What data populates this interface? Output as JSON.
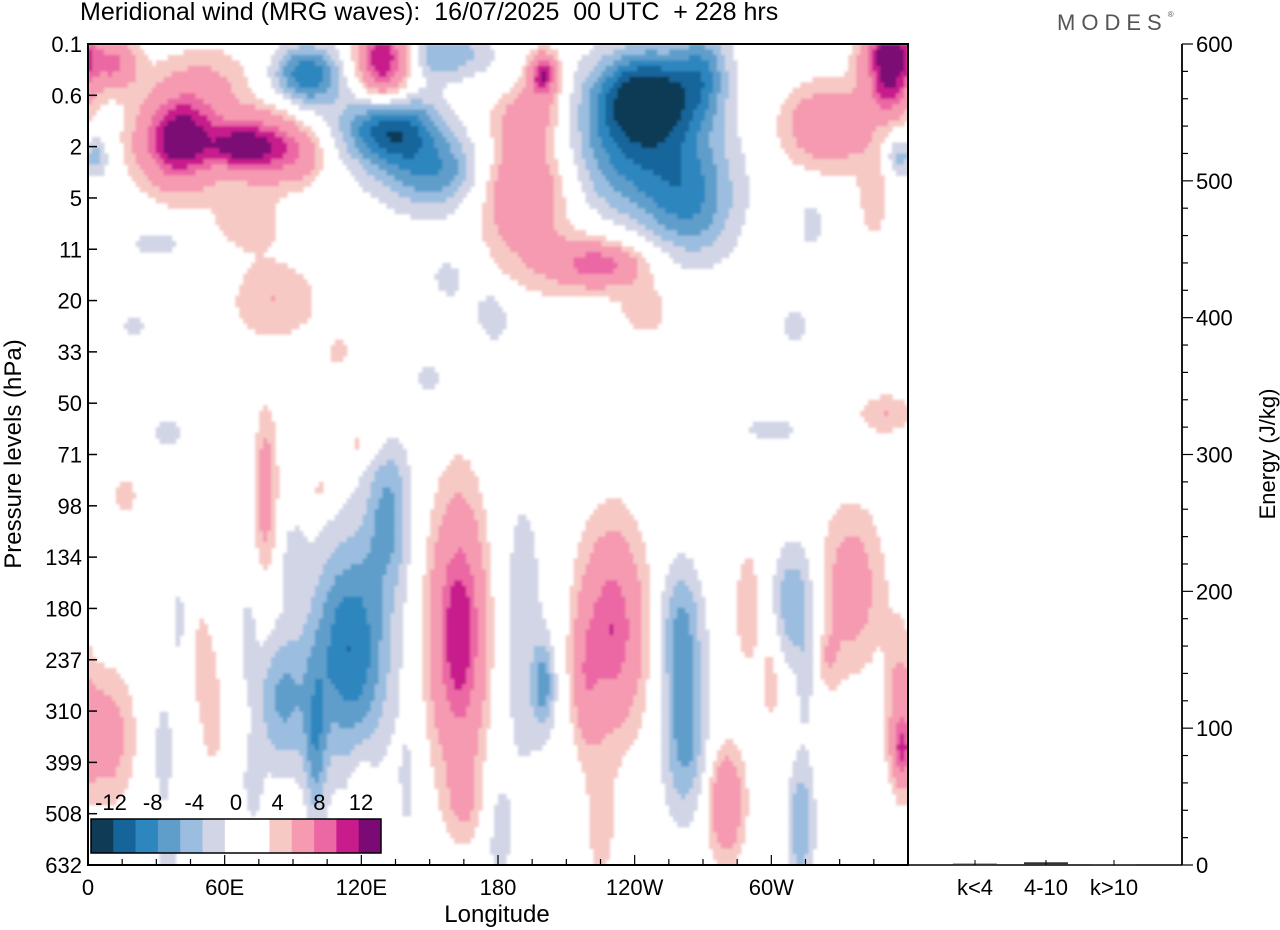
{
  "header": {
    "title": "Meridional wind (MRG waves):  16/07/2025  00 UTC  + 228 hrs",
    "brand": "MODES"
  },
  "colors": {
    "negative": [
      "#0f3b57",
      "#15659b",
      "#2e86bf",
      "#5f9ecb",
      "#9bbddf",
      "#d2d5e6"
    ],
    "neutral": "#ffffff",
    "positive": [
      "#f7c9c5",
      "#f59ab0",
      "#ec68a4",
      "#c81c8c",
      "#7c0a74"
    ]
  },
  "chart_data": [
    {
      "type": "heatmap",
      "title": "Meridional wind (MRG waves):  16/07/2025  00 UTC  + 228 hrs",
      "xlabel": "Longitude",
      "ylabel": "Pressure levels (hPa)",
      "x_ticks": [
        "0",
        "60E",
        "120E",
        "180",
        "120W",
        "60W"
      ],
      "x_tick_degrees": [
        0,
        60,
        120,
        180,
        240,
        300
      ],
      "x_range": [
        0,
        360
      ],
      "y_levels": [
        "0.1",
        "0.6",
        "2",
        "5",
        "11",
        "20",
        "33",
        "50",
        "71",
        "98",
        "134",
        "180",
        "237",
        "310",
        "399",
        "508",
        "632"
      ],
      "colorbar": {
        "labels": [
          "-12",
          "-8",
          "-4",
          "0",
          "4",
          "8",
          "12"
        ],
        "levels": [
          -14,
          -12,
          -10,
          -8,
          -6,
          -4,
          -2,
          2,
          4,
          6,
          8,
          10,
          12,
          14
        ]
      },
      "blobs": [
        {
          "lon": 12,
          "lev": 0.4,
          "rx": 10,
          "ry": 0.5,
          "v": 8
        },
        {
          "lon": 52,
          "lev": 0.8,
          "rx": 22,
          "ry": 0.8,
          "v": 4
        },
        {
          "lon": 40,
          "lev": 1.9,
          "rx": 18,
          "ry": 0.9,
          "v": 14
        },
        {
          "lon": 65,
          "lev": 2.0,
          "rx": 12,
          "ry": 0.5,
          "v": 8
        },
        {
          "lon": 80,
          "lev": 2.0,
          "rx": 15,
          "ry": 0.7,
          "v": 10
        },
        {
          "lon": 95,
          "lev": 2.2,
          "rx": 10,
          "ry": 0.5,
          "v": 4
        },
        {
          "lon": 70,
          "lev": 3.5,
          "rx": 18,
          "ry": 0.6,
          "v": 3
        },
        {
          "lon": 130,
          "lev": 0.3,
          "rx": 12,
          "ry": 0.9,
          "v": 14
        },
        {
          "lon": 96,
          "lev": 0.6,
          "rx": 15,
          "ry": 0.6,
          "v": -10
        },
        {
          "lon": 132,
          "lev": 1.6,
          "rx": 20,
          "ry": 0.7,
          "v": -12
        },
        {
          "lon": 155,
          "lev": 0.2,
          "rx": 22,
          "ry": 0.5,
          "v": -6
        },
        {
          "lon": 155,
          "lev": 2.5,
          "rx": 28,
          "ry": 0.8,
          "v": -8
        },
        {
          "lon": 190,
          "lev": 2.7,
          "rx": 22,
          "ry": 1.0,
          "v": 10
        },
        {
          "lon": 194,
          "lev": 1.4,
          "rx": 15,
          "ry": 0.6,
          "v": 6
        },
        {
          "lon": 200,
          "lev": 0.6,
          "rx": 7,
          "ry": 0.45,
          "v": 12
        },
        {
          "lon": 245,
          "lev": 1.0,
          "rx": 22,
          "ry": 0.9,
          "v": -12
        },
        {
          "lon": 270,
          "lev": 0.5,
          "rx": 12,
          "ry": 0.9,
          "v": -6
        },
        {
          "lon": 240,
          "lev": 2.2,
          "rx": 35,
          "ry": 1.4,
          "v": -8
        },
        {
          "lon": 265,
          "lev": 3.2,
          "rx": 20,
          "ry": 1.2,
          "v": -6
        },
        {
          "lon": 325,
          "lev": 1.6,
          "rx": 20,
          "ry": 0.8,
          "v": 8
        },
        {
          "lon": 352,
          "lev": 0.2,
          "rx": 12,
          "ry": 0.6,
          "v": 14
        },
        {
          "lon": 352,
          "lev": 1.0,
          "rx": 10,
          "ry": 0.5,
          "v": 8
        },
        {
          "lon": 345,
          "lev": 3.0,
          "rx": 8,
          "ry": 1.0,
          "v": 3
        },
        {
          "lon": 355,
          "lev": 2.2,
          "rx": 5,
          "ry": 0.4,
          "v": -5
        },
        {
          "lon": 4,
          "lev": 2.2,
          "rx": 5,
          "ry": 0.4,
          "v": -5
        },
        {
          "lon": 210,
          "lev": 4.2,
          "rx": 40,
          "ry": 0.8,
          "v": 4
        },
        {
          "lon": 225,
          "lev": 4.3,
          "rx": 18,
          "ry": 0.4,
          "v": 7
        },
        {
          "lon": 245,
          "lev": 5.2,
          "rx": 12,
          "ry": 0.6,
          "v": 3
        },
        {
          "lon": 82,
          "lev": 5.0,
          "rx": 20,
          "ry": 0.8,
          "v": 4
        },
        {
          "lon": 160,
          "lev": 4.5,
          "rx": 16,
          "ry": 0.8,
          "v": -3
        },
        {
          "lon": 178,
          "lev": 5.3,
          "rx": 8,
          "ry": 0.6,
          "v": -3
        },
        {
          "lon": 30,
          "lev": 3.9,
          "rx": 15,
          "ry": 0.3,
          "v": -3
        },
        {
          "lon": 20,
          "lev": 5.5,
          "rx": 10,
          "ry": 0.3,
          "v": -2.5
        },
        {
          "lon": 150,
          "lev": 6.5,
          "rx": 10,
          "ry": 0.5,
          "v": -2.5
        },
        {
          "lon": 310,
          "lev": 5.5,
          "rx": 10,
          "ry": 0.6,
          "v": -2.5
        },
        {
          "lon": 318,
          "lev": 3.5,
          "rx": 6,
          "ry": 0.6,
          "v": -3
        },
        {
          "lon": 300,
          "lev": 7.5,
          "rx": 20,
          "ry": 0.4,
          "v": -2.5
        },
        {
          "lon": 350,
          "lev": 7.2,
          "rx": 12,
          "ry": 0.4,
          "v": 4
        },
        {
          "lon": 35,
          "lev": 7.6,
          "rx": 10,
          "ry": 0.5,
          "v": -2.5
        },
        {
          "lon": 120,
          "lev": 7.8,
          "rx": 10,
          "ry": 0.3,
          "v": 3
        },
        {
          "lon": 110,
          "lev": 6.0,
          "rx": 5,
          "ry": 0.3,
          "v": 3
        },
        {
          "lon": 78,
          "lev": 8.7,
          "rx": 5,
          "ry": 1.6,
          "v": 6
        },
        {
          "lon": 16,
          "lev": 8.8,
          "rx": 7,
          "ry": 0.4,
          "v": 3
        },
        {
          "lon": 102,
          "lev": 8.7,
          "rx": 6,
          "ry": 0.4,
          "v": 3
        },
        {
          "lon": 132,
          "lev": 9.1,
          "rx": 10,
          "ry": 1.5,
          "v": -6
        },
        {
          "lon": 90,
          "lev": 10.0,
          "rx": 6,
          "ry": 0.8,
          "v": -2.5
        },
        {
          "lon": 115,
          "lev": 11.8,
          "rx": 18,
          "ry": 2.2,
          "v": -10
        },
        {
          "lon": 85,
          "lev": 12.8,
          "rx": 12,
          "ry": 1.4,
          "v": -6
        },
        {
          "lon": 100,
          "lev": 13.8,
          "rx": 5,
          "ry": 1.5,
          "v": -5
        },
        {
          "lon": 70,
          "lev": 11.5,
          "rx": 4,
          "ry": 1.0,
          "v": -2.5
        },
        {
          "lon": 163,
          "lev": 11.5,
          "rx": 13,
          "ry": 2.6,
          "v": 12
        },
        {
          "lon": 165,
          "lev": 14.8,
          "rx": 8,
          "ry": 0.8,
          "v": 3
        },
        {
          "lon": 190,
          "lev": 11.5,
          "rx": 14,
          "ry": 3.8,
          "v": -3
        },
        {
          "lon": 200,
          "lev": 12.5,
          "rx": 5,
          "ry": 0.8,
          "v": -6
        },
        {
          "lon": 180,
          "lev": 15.5,
          "rx": 6,
          "ry": 1.2,
          "v": -2.5
        },
        {
          "lon": 230,
          "lev": 11.4,
          "rx": 15,
          "ry": 2.0,
          "v": 10
        },
        {
          "lon": 218,
          "lev": 12.5,
          "rx": 6,
          "ry": 1.3,
          "v": 4
        },
        {
          "lon": 225,
          "lev": 15.2,
          "rx": 7,
          "ry": 1.4,
          "v": 3
        },
        {
          "lon": 260,
          "lev": 11.3,
          "rx": 10,
          "ry": 1.3,
          "v": -6
        },
        {
          "lon": 262,
          "lev": 13.5,
          "rx": 10,
          "ry": 1.6,
          "v": -7
        },
        {
          "lon": 290,
          "lev": 11.0,
          "rx": 8,
          "ry": 1.6,
          "v": 3
        },
        {
          "lon": 280,
          "lev": 14.8,
          "rx": 8,
          "ry": 1.1,
          "v": 8
        },
        {
          "lon": 310,
          "lev": 10.9,
          "rx": 10,
          "ry": 1.2,
          "v": -6
        },
        {
          "lon": 313,
          "lev": 15.2,
          "rx": 6,
          "ry": 1.3,
          "v": -6
        },
        {
          "lon": 335,
          "lev": 10.6,
          "rx": 14,
          "ry": 1.6,
          "v": 6
        },
        {
          "lon": 325,
          "lev": 12.0,
          "rx": 5,
          "ry": 0.6,
          "v": 3
        },
        {
          "lon": 40,
          "lev": 11.3,
          "rx": 5,
          "ry": 1.2,
          "v": -2.5
        },
        {
          "lon": 50,
          "lev": 12.0,
          "rx": 6,
          "ry": 1.2,
          "v": 3
        },
        {
          "lon": 55,
          "lev": 13.2,
          "rx": 5,
          "ry": 1.0,
          "v": 3
        },
        {
          "lon": 33,
          "lev": 13.8,
          "rx": 4,
          "ry": 1.0,
          "v": -4
        },
        {
          "lon": 8,
          "lev": 13.5,
          "rx": 12,
          "ry": 1.3,
          "v": 6
        },
        {
          "lon": 356,
          "lev": 12.8,
          "rx": 6,
          "ry": 1.6,
          "v": 4
        },
        {
          "lon": 357,
          "lev": 13.8,
          "rx": 4,
          "ry": 0.6,
          "v": 6
        },
        {
          "lon": 72,
          "lev": 14.5,
          "rx": 5,
          "ry": 1.0,
          "v": -2.5
        },
        {
          "lon": 120,
          "lev": 15.0,
          "rx": 5,
          "ry": 1.2,
          "v": 3
        },
        {
          "lon": 140,
          "lev": 14.5,
          "rx": 4,
          "ry": 1.2,
          "v": -2.5
        },
        {
          "lon": 35,
          "lev": 15.8,
          "rx": 6,
          "ry": 0.8,
          "v": -2.5
        },
        {
          "lon": 315,
          "lev": 12.5,
          "rx": 4,
          "ry": 1.0,
          "v": -2.5
        },
        {
          "lon": 300,
          "lev": 12.4,
          "rx": 4,
          "ry": 1.0,
          "v": 3
        }
      ]
    },
    {
      "type": "bar",
      "categories": [
        "k<4",
        "4-10",
        "k>10"
      ],
      "values": [
        1,
        2,
        0.5
      ],
      "ylabel": "Energy (J/kg)",
      "ylim": [
        0,
        600
      ],
      "y_ticks": [
        0,
        100,
        200,
        300,
        400,
        500,
        600
      ]
    }
  ]
}
